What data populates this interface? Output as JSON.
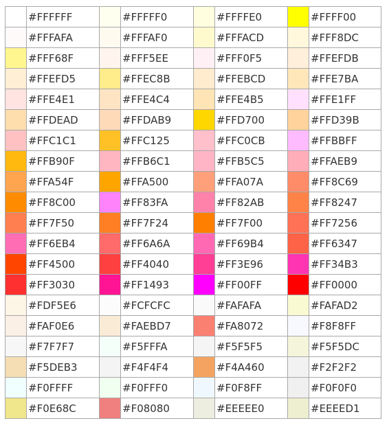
{
  "rows": [
    [
      "#FFFFFF",
      "#FFFFF0",
      "#FFFFE0",
      "#FFFF00"
    ],
    [
      "#FFFAFA",
      "#FFFAF0",
      "#FFFACD",
      "#FFF8DC"
    ],
    [
      "#FFF68F",
      "#FFF5EE",
      "#FFF0F5",
      "#FFEFDB"
    ],
    [
      "#FFEFD5",
      "#FFEC8B",
      "#FFEBCD",
      "#FFE7BA"
    ],
    [
      "#FFE4E1",
      "#FFE4C4",
      "#FFE4B5",
      "#FFE1FF"
    ],
    [
      "#FFDEAD",
      "#FFDAB9",
      "#FFD700",
      "#FFD39B"
    ],
    [
      "#FFC1C1",
      "#FFC125",
      "#FFC0CB",
      "#FFBBFF"
    ],
    [
      "#FFB90F",
      "#FFB6C1",
      "#FFB5C5",
      "#FFAEB9"
    ],
    [
      "#FFA54F",
      "#FFA500",
      "#FFA07A",
      "#FF8C69"
    ],
    [
      "#FF8C00",
      "#FF83FA",
      "#FF82AB",
      "#FF8247"
    ],
    [
      "#FF7F50",
      "#FF7F24",
      "#FF7F00",
      "#FF7256"
    ],
    [
      "#FF6EB4",
      "#FF6A6A",
      "#FF69B4",
      "#FF6347"
    ],
    [
      "#FF4500",
      "#FF4040",
      "#FF3E96",
      "#FF34B3"
    ],
    [
      "#FF3030",
      "#FF1493",
      "#FF00FF",
      "#FF0000"
    ],
    [
      "#FDF5E6",
      "#FCFCFC",
      "#FAFAFA",
      "#FAFAD2"
    ],
    [
      "#FAF0E6",
      "#FAEBD7",
      "#FA8072",
      "#F8F8FF"
    ],
    [
      "#F7F7F7",
      "#F5FFFA",
      "#F5F5F5",
      "#F5F5DC"
    ],
    [
      "#F5DEB3",
      "#F4F4F4",
      "#F4A460",
      "#F2F2F2"
    ],
    [
      "#F0FFFF",
      "#F0FFF0",
      "#F0F8FF",
      "#F0F0F0"
    ],
    [
      "#F0E68C",
      "#F08080",
      "#EEEEE0",
      "#EEEED1"
    ]
  ]
}
